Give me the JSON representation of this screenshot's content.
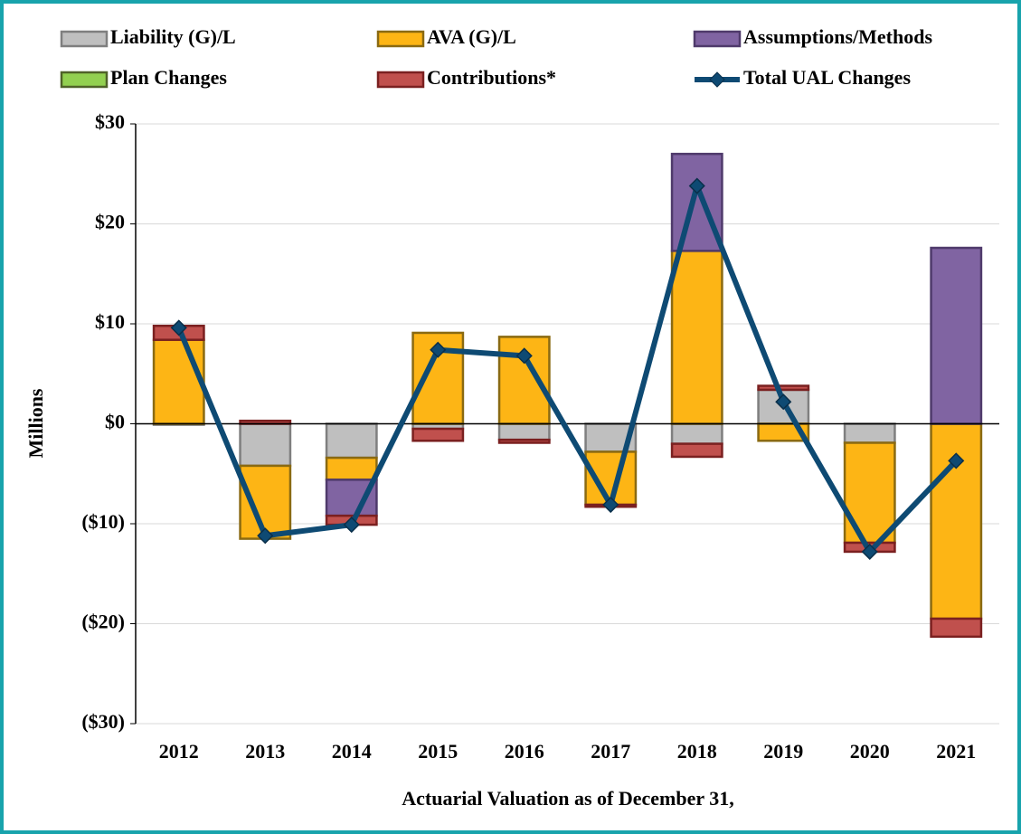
{
  "chart_data": {
    "type": "bar",
    "x_label": "Actuarial Valuation as of December 31,",
    "y_label": "Millions",
    "categories": [
      "2012",
      "2013",
      "2014",
      "2015",
      "2016",
      "2017",
      "2018",
      "2019",
      "2020",
      "2021"
    ],
    "series": [
      {
        "name": "Liability (G)/L",
        "color": "#bfbfbf",
        "border": "#7f7f7f",
        "values": [
          -0.1,
          -4.2,
          -3.4,
          -0.5,
          -1.6,
          -2.8,
          -2.0,
          3.4,
          -1.9,
          0
        ]
      },
      {
        "name": "AVA (G)/L",
        "color": "#fdb515",
        "border": "#8a6a12",
        "values": [
          8.4,
          -7.3,
          -2.2,
          9.1,
          8.7,
          -5.3,
          17.3,
          -1.7,
          -10.0,
          -19.5
        ]
      },
      {
        "name": "Assumptions/Methods",
        "color": "#8064a2",
        "border": "#4f3a6b",
        "values": [
          0,
          0,
          -3.6,
          0,
          0,
          0,
          9.7,
          0,
          0,
          17.6
        ]
      },
      {
        "name": "Plan Changes",
        "color": "#92d050",
        "border": "#4f6228",
        "values": [
          0,
          0,
          0,
          0,
          0,
          0,
          0,
          0,
          0,
          0
        ]
      },
      {
        "name": "Contributions*",
        "color": "#c0504d",
        "border": "#7a2020",
        "values": [
          1.4,
          0.3,
          -0.9,
          -1.2,
          -0.3,
          -0.2,
          -1.3,
          0.4,
          -0.9,
          -1.8
        ]
      },
      {
        "name": "Total UAL Changes",
        "type": "line",
        "color": "#0e4a73",
        "values": [
          9.6,
          -11.2,
          -10.1,
          7.4,
          6.8,
          -8.1,
          23.8,
          2.2,
          -12.8,
          -3.7
        ]
      }
    ],
    "ylim": [
      -30,
      30
    ],
    "yticks": [
      {
        "value": -30,
        "label": "($30)"
      },
      {
        "value": -20,
        "label": "($20)"
      },
      {
        "value": -10,
        "label": "($10)"
      },
      {
        "value": 0,
        "label": "$0"
      },
      {
        "value": 10,
        "label": "$10"
      },
      {
        "value": 20,
        "label": "$20"
      },
      {
        "value": 30,
        "label": "$30"
      }
    ],
    "grid": true,
    "legend": "top"
  }
}
